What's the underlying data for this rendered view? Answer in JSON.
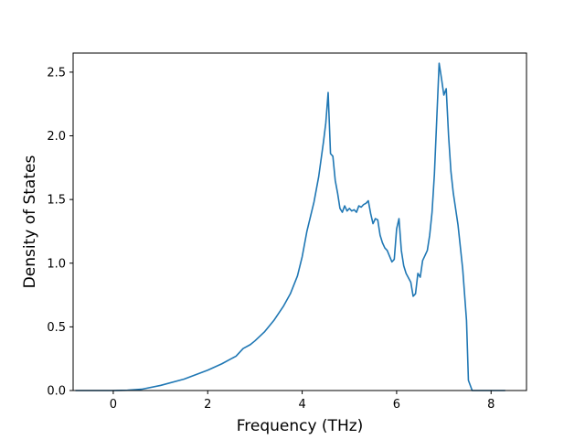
{
  "chart_data": {
    "type": "line",
    "title": "",
    "xlabel": "Frequency (THz)",
    "ylabel": "Density of States",
    "xlim": [
      -0.85,
      8.75
    ],
    "ylim": [
      0,
      2.65
    ],
    "xticks": [
      0,
      2,
      4,
      6,
      8
    ],
    "yticks": [
      0.0,
      0.5,
      1.0,
      1.5,
      2.0,
      2.5
    ],
    "xtick_labels": [
      "0",
      "2",
      "4",
      "6",
      "8"
    ],
    "ytick_labels": [
      "0.0",
      "0.5",
      "1.0",
      "1.5",
      "2.0",
      "2.5"
    ],
    "grid": false,
    "legend": "none",
    "line_color": "#1f77b4",
    "series": [
      {
        "x": [
          -0.8,
          -0.4,
          0.0,
          0.3,
          0.6,
          1.0,
          1.5,
          2.0,
          2.3,
          2.6,
          2.75,
          2.9,
          3.0,
          3.2,
          3.4,
          3.6,
          3.75,
          3.9,
          4.0,
          4.1,
          4.25,
          4.35,
          4.45,
          4.5,
          4.55,
          4.6,
          4.65,
          4.7,
          4.75,
          4.8,
          4.85,
          4.9,
          4.95,
          5.0,
          5.05,
          5.1,
          5.15,
          5.2,
          5.25,
          5.3,
          5.35,
          5.4,
          5.45,
          5.5,
          5.55,
          5.6,
          5.65,
          5.7,
          5.75,
          5.8,
          5.9,
          5.95,
          6.0,
          6.05,
          6.1,
          6.15,
          6.2,
          6.3,
          6.35,
          6.4,
          6.45,
          6.5,
          6.55,
          6.6,
          6.65,
          6.7,
          6.75,
          6.8,
          6.9,
          6.95,
          7.0,
          7.05,
          7.1,
          7.15,
          7.2,
          7.3,
          7.4,
          7.48,
          7.52,
          7.6,
          7.8,
          8.0,
          8.3
        ],
        "y": [
          0.0,
          0.0,
          0.0,
          0.002,
          0.01,
          0.04,
          0.09,
          0.16,
          0.21,
          0.27,
          0.33,
          0.36,
          0.39,
          0.46,
          0.55,
          0.66,
          0.76,
          0.9,
          1.05,
          1.25,
          1.48,
          1.68,
          1.95,
          2.1,
          2.34,
          1.86,
          1.84,
          1.65,
          1.55,
          1.43,
          1.4,
          1.45,
          1.41,
          1.43,
          1.41,
          1.42,
          1.4,
          1.45,
          1.44,
          1.46,
          1.47,
          1.49,
          1.39,
          1.31,
          1.35,
          1.34,
          1.22,
          1.16,
          1.12,
          1.1,
          1.01,
          1.03,
          1.27,
          1.35,
          1.1,
          0.98,
          0.92,
          0.85,
          0.74,
          0.76,
          0.92,
          0.89,
          1.02,
          1.06,
          1.1,
          1.22,
          1.4,
          1.7,
          2.57,
          2.45,
          2.32,
          2.37,
          2.0,
          1.72,
          1.55,
          1.3,
          0.95,
          0.55,
          0.08,
          0.0,
          0.0,
          0.0,
          0.0
        ]
      }
    ]
  }
}
